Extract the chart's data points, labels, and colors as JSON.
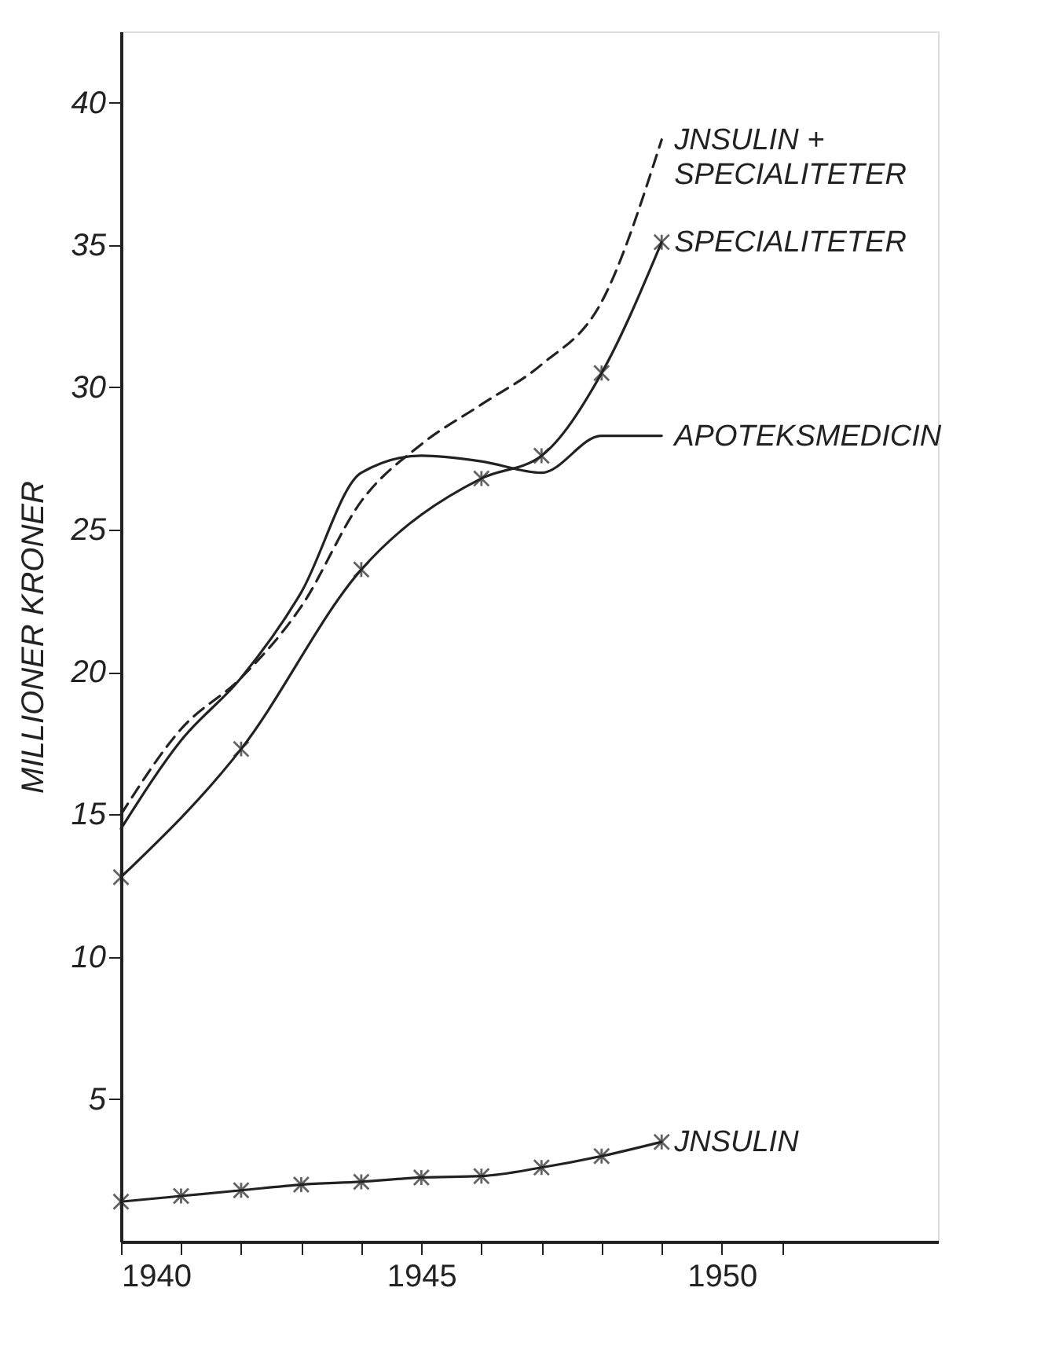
{
  "chart_data": {
    "type": "line",
    "ylabel": "MILLIONER KRONER",
    "x": [
      1940,
      1941,
      1942,
      1943,
      1944,
      1945,
      1946,
      1947,
      1948,
      1949
    ],
    "series": [
      {
        "name": "JNSULIN +\nSPECIALITETER",
        "color": "#222222",
        "line_style": "dashed",
        "marker": "none",
        "values": [
          15.0,
          18.0,
          19.8,
          22.3,
          26.0,
          28.0,
          29.4,
          30.8,
          33.0,
          38.7
        ]
      },
      {
        "name": "SPECIALITETER",
        "color": "#222222",
        "line_style": "solid",
        "marker": "cross",
        "x": [
          1940,
          1942,
          1944,
          1946,
          1947,
          1948,
          1949
        ],
        "values": [
          12.8,
          17.3,
          23.6,
          26.8,
          27.6,
          30.5,
          35.1
        ]
      },
      {
        "name": "APOTEKSMEDICIN",
        "color": "#222222",
        "line_style": "solid",
        "marker": "none",
        "values": [
          14.5,
          17.6,
          19.8,
          22.8,
          27.0,
          27.6,
          27.4,
          27.0,
          28.3,
          28.3
        ]
      },
      {
        "name": "JNSULIN",
        "color": "#222222",
        "line_style": "solid",
        "marker": "cross",
        "values": [
          1.4,
          1.6,
          1.8,
          2.0,
          2.1,
          2.25,
          2.3,
          2.6,
          3.0,
          3.5
        ]
      }
    ],
    "xlim": [
      1940,
      1953.6
    ],
    "ylim": [
      0,
      42.5
    ],
    "xticks": [
      1940,
      {
        "value": 1941,
        "label": null
      },
      {
        "value": 1942,
        "label": null
      },
      {
        "value": 1943,
        "label": null
      },
      {
        "value": 1944,
        "label": null
      },
      1945,
      {
        "value": 1946,
        "label": null
      },
      {
        "value": 1947,
        "label": null
      },
      {
        "value": 1948,
        "label": null
      },
      {
        "value": 1949,
        "label": null
      },
      1950,
      {
        "value": 1951,
        "label": null
      }
    ],
    "yticks": [
      5,
      10,
      15,
      20,
      25,
      30,
      35,
      40
    ],
    "grid": false,
    "legend": false
  }
}
